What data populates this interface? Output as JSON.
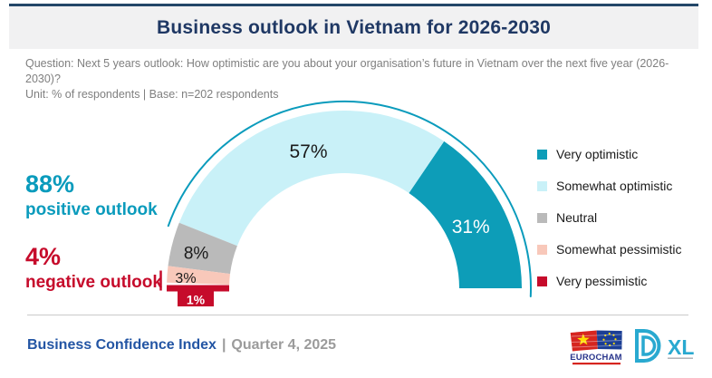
{
  "header": {
    "title": "Business outlook in Vietnam for 2026-2030"
  },
  "meta": {
    "question": "Question: Next 5 years outlook: How optimistic are you about your organisation’s future in Vietnam over the next five year (2026-2030)?",
    "unit": "Unit: % of respondents | Base: n=202 respondents"
  },
  "chart_data": {
    "type": "pie",
    "subtype": "half-donut-gauge",
    "title": "Business outlook in Vietnam for 2026-2030",
    "unit": "% of respondents",
    "base": "n=202",
    "categories": [
      "Very optimistic",
      "Somewhat optimistic",
      "Neutral",
      "Somewhat pessimistic",
      "Very pessimistic"
    ],
    "values": [
      31,
      57,
      8,
      3,
      1
    ],
    "data_labels": [
      "31%",
      "57%",
      "8%",
      "3%",
      "1%"
    ],
    "segment_colors": [
      "#0D9DB8",
      "#C9F1F8",
      "#BABABA",
      "#F8C8BA",
      "#C60B2B"
    ],
    "data_label_colors": [
      "#FFFFFF",
      "#1A1A1A",
      "#1A1A1A",
      "#1A1A1A",
      "#FFFFFF"
    ],
    "legend_position": "right",
    "start_side": "right",
    "exploded_segment": "Very pessimistic",
    "annotations": [
      {
        "value": "88%",
        "label": "positive outlook",
        "color": "#0A9BBC"
      },
      {
        "value": "4%",
        "label": "negative outlook",
        "color": "#C60B2B"
      }
    ]
  },
  "footer": {
    "title": "Business Confidence Index",
    "separator": "|",
    "date": "Quarter 4, 2025"
  },
  "logos": {
    "eurocham": {
      "wordmark": "EUROCHAM"
    },
    "dxl": {
      "wordmark": "XL"
    }
  },
  "theme": {
    "navy": "#1F3864",
    "band_gray": "#F1F1F2",
    "teal": "#0A9BBC",
    "crimson": "#C60B2B",
    "footer_blue": "#2355A4",
    "text_gray": "#7F7F7F"
  }
}
